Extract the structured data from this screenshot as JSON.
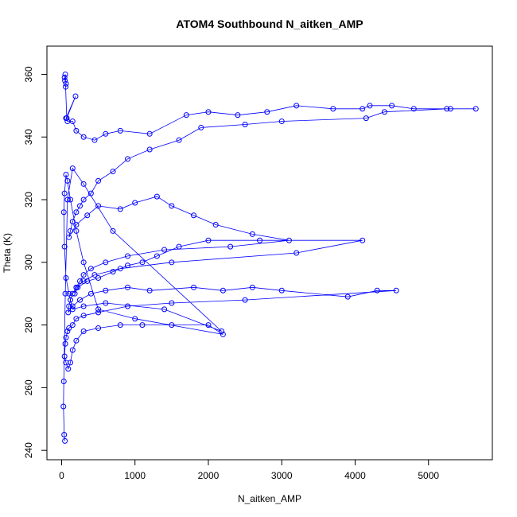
{
  "chart_data": {
    "type": "scatter-line",
    "title": "ATOM4 Southbound N_aitken_AMP",
    "x_label": "N_aitken_AMP",
    "y_label": "Theta (K)",
    "color": "#0000ff",
    "xlim": [
      -200,
      5870
    ],
    "ylim": [
      237,
      369
    ],
    "xticks": [
      0,
      1000,
      2000,
      3000,
      4000,
      5000
    ],
    "yticks": [
      240,
      260,
      280,
      300,
      320,
      340,
      360
    ],
    "x": [
      40,
      45,
      50,
      60,
      55,
      70,
      190,
      60,
      80,
      150,
      200,
      300,
      450,
      600,
      800,
      1200,
      1700,
      2000,
      2400,
      2800,
      3200,
      3700,
      4100,
      4200,
      4500,
      4800,
      5300,
      5645,
      5250,
      4400,
      4150,
      3000,
      2500,
      1900,
      1600,
      1200,
      900,
      700,
      500,
      400,
      300,
      250,
      200,
      150,
      120,
      100,
      200,
      350,
      500,
      800,
      1000,
      1300,
      1500,
      1800,
      2100,
      2600,
      3100,
      2300,
      1400,
      900,
      600,
      400,
      300,
      250,
      200,
      180,
      220,
      350,
      500,
      700,
      900,
      1100,
      1300,
      1600,
      2000,
      2700,
      4100,
      3200,
      1500,
      800,
      450,
      300,
      200,
      150,
      120,
      100,
      90,
      150,
      250,
      400,
      600,
      900,
      1200,
      1800,
      2200,
      2600,
      3000,
      3900,
      4300,
      4560,
      2500,
      1500,
      900,
      500,
      300,
      200,
      150,
      100,
      80,
      60,
      50,
      40,
      60,
      90,
      120,
      150,
      200,
      300,
      500,
      800,
      1100,
      1500,
      2000,
      2200,
      1000,
      500,
      300,
      200,
      120,
      80,
      60,
      40,
      30,
      40,
      60,
      100,
      150,
      300,
      600,
      1400,
      2180,
      700,
      300,
      150,
      80,
      50,
      30,
      25,
      35,
      45
    ],
    "y": [
      359,
      358,
      360,
      357,
      356,
      346,
      353,
      346,
      345,
      345,
      342,
      340,
      339,
      341,
      342,
      341,
      347,
      348,
      347,
      348,
      350,
      349,
      349,
      350,
      350,
      349,
      349,
      349,
      349,
      348,
      346,
      345,
      344,
      343,
      339,
      336,
      333,
      329,
      326,
      322,
      320,
      318,
      316,
      313,
      310,
      308,
      312,
      315,
      318,
      317,
      319,
      321,
      318,
      315,
      312,
      309,
      307,
      305,
      304,
      302,
      300,
      298,
      296,
      294,
      292,
      290,
      292,
      294,
      295,
      297,
      299,
      300,
      302,
      305,
      307,
      307,
      307,
      303,
      300,
      298,
      296,
      294,
      292,
      290,
      288,
      286,
      284,
      286,
      288,
      290,
      291,
      292,
      291,
      292,
      291,
      292,
      291,
      289,
      291,
      291,
      288,
      287,
      286,
      284,
      283,
      282,
      280,
      279,
      278,
      276,
      274,
      270,
      268,
      266,
      268,
      272,
      275,
      278,
      279,
      280,
      280,
      280,
      280,
      277,
      282,
      285,
      300,
      310,
      320,
      326,
      328,
      322,
      316,
      305,
      295,
      290,
      285,
      286,
      287,
      285,
      278,
      310,
      325,
      330,
      320,
      290,
      262,
      254,
      245,
      243
    ]
  }
}
